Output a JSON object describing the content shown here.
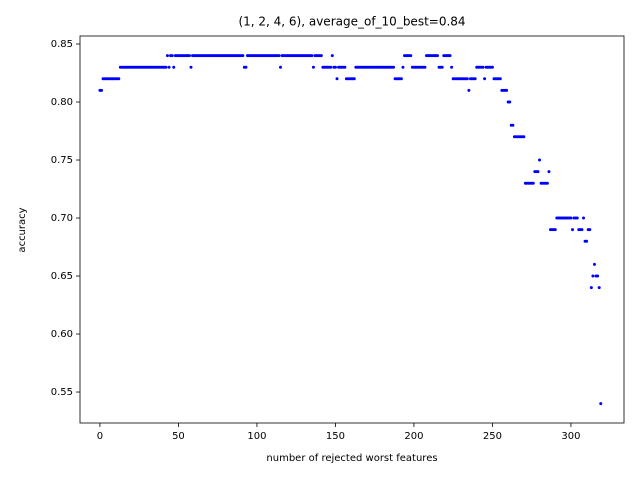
{
  "chart_data": {
    "type": "scatter",
    "title": "(1, 2, 4, 6), average_of_10_best=0.84",
    "xlabel": "number of rejected worst features",
    "ylabel": "accuracy",
    "color": "blue",
    "xlim": [
      -12.7,
      333.8
    ],
    "ylim": [
      0.5233,
      0.8569
    ],
    "xticks": [
      0,
      50,
      100,
      150,
      200,
      250,
      300
    ],
    "yticks": [
      {
        "value": 0.55,
        "label": "0.55"
      },
      {
        "value": 0.6,
        "label": "0.60"
      },
      {
        "value": 0.65,
        "label": "0.65"
      },
      {
        "value": 0.7,
        "label": "0.70"
      },
      {
        "value": 0.75,
        "label": "0.75"
      },
      {
        "value": 0.8,
        "label": "0.80"
      },
      {
        "value": 0.85,
        "label": "0.85"
      }
    ],
    "x": [
      0,
      1,
      2,
      3,
      4,
      5,
      6,
      7,
      8,
      9,
      10,
      11,
      12,
      13,
      14,
      15,
      16,
      17,
      18,
      19,
      20,
      21,
      22,
      23,
      24,
      25,
      26,
      27,
      28,
      29,
      30,
      31,
      32,
      33,
      34,
      35,
      36,
      37,
      38,
      39,
      40,
      41,
      42,
      43,
      44,
      45,
      46,
      47,
      48,
      49,
      50,
      51,
      52,
      53,
      54,
      55,
      56,
      57,
      58,
      59,
      60,
      61,
      62,
      63,
      64,
      65,
      66,
      67,
      68,
      69,
      70,
      71,
      72,
      73,
      74,
      75,
      76,
      77,
      78,
      79,
      80,
      81,
      82,
      83,
      84,
      85,
      86,
      87,
      88,
      89,
      90,
      91,
      92,
      93,
      94,
      95,
      96,
      97,
      98,
      99,
      100,
      101,
      102,
      103,
      104,
      105,
      106,
      107,
      108,
      109,
      110,
      111,
      112,
      113,
      114,
      115,
      116,
      117,
      118,
      119,
      120,
      121,
      122,
      123,
      124,
      125,
      126,
      127,
      128,
      129,
      130,
      131,
      132,
      133,
      134,
      135,
      136,
      137,
      138,
      139,
      140,
      141,
      142,
      143,
      144,
      145,
      146,
      147,
      148,
      149,
      150,
      151,
      152,
      153,
      154,
      155,
      156,
      157,
      158,
      159,
      160,
      161,
      162,
      163,
      164,
      165,
      166,
      167,
      168,
      169,
      170,
      171,
      172,
      173,
      174,
      175,
      176,
      177,
      178,
      179,
      180,
      181,
      182,
      183,
      184,
      185,
      186,
      187,
      188,
      189,
      190,
      191,
      192,
      193,
      194,
      195,
      196,
      197,
      198,
      199,
      200,
      201,
      202,
      203,
      204,
      205,
      206,
      207,
      208,
      209,
      210,
      211,
      212,
      213,
      214,
      215,
      216,
      217,
      218,
      219,
      220,
      221,
      222,
      223,
      224,
      225,
      226,
      227,
      228,
      229,
      230,
      231,
      232,
      233,
      234,
      235,
      236,
      237,
      238,
      239,
      240,
      241,
      242,
      243,
      244,
      245,
      246,
      247,
      248,
      249,
      250,
      251,
      252,
      253,
      254,
      255,
      256,
      257,
      258,
      259,
      260,
      261,
      262,
      263,
      264,
      265,
      266,
      267,
      268,
      269,
      270,
      271,
      272,
      273,
      274,
      275,
      276,
      277,
      278,
      279,
      280,
      281,
      282,
      283,
      284,
      285,
      286,
      287,
      288,
      289,
      290,
      291,
      292,
      293,
      294,
      295,
      296,
      297,
      298,
      299,
      300,
      301,
      302,
      303,
      304,
      305,
      306,
      307,
      308,
      309,
      310,
      311,
      312,
      313,
      314,
      315,
      316,
      317,
      318,
      319
    ],
    "values": [
      0.81,
      0.81,
      0.82,
      0.82,
      0.82,
      0.82,
      0.82,
      0.82,
      0.82,
      0.82,
      0.82,
      0.82,
      0.82,
      0.83,
      0.83,
      0.83,
      0.83,
      0.83,
      0.83,
      0.83,
      0.83,
      0.83,
      0.83,
      0.83,
      0.83,
      0.83,
      0.83,
      0.83,
      0.83,
      0.83,
      0.83,
      0.83,
      0.83,
      0.83,
      0.83,
      0.83,
      0.83,
      0.83,
      0.83,
      0.83,
      0.83,
      0.83,
      0.83,
      0.84,
      0.83,
      0.84,
      0.84,
      0.83,
      0.84,
      0.84,
      0.84,
      0.84,
      0.84,
      0.84,
      0.84,
      0.84,
      0.84,
      0.84,
      0.83,
      0.84,
      0.84,
      0.84,
      0.84,
      0.84,
      0.84,
      0.84,
      0.84,
      0.84,
      0.84,
      0.84,
      0.84,
      0.84,
      0.84,
      0.84,
      0.84,
      0.84,
      0.84,
      0.84,
      0.84,
      0.84,
      0.84,
      0.84,
      0.84,
      0.84,
      0.84,
      0.84,
      0.84,
      0.84,
      0.84,
      0.84,
      0.84,
      0.84,
      0.83,
      0.83,
      0.84,
      0.84,
      0.84,
      0.84,
      0.84,
      0.84,
      0.84,
      0.84,
      0.84,
      0.84,
      0.84,
      0.84,
      0.84,
      0.84,
      0.84,
      0.84,
      0.84,
      0.84,
      0.84,
      0.84,
      0.84,
      0.83,
      0.84,
      0.84,
      0.84,
      0.84,
      0.84,
      0.84,
      0.84,
      0.84,
      0.84,
      0.84,
      0.84,
      0.84,
      0.84,
      0.84,
      0.84,
      0.84,
      0.84,
      0.84,
      0.84,
      0.84,
      0.83,
      0.84,
      0.84,
      0.84,
      0.84,
      0.84,
      0.83,
      0.83,
      0.83,
      0.83,
      0.83,
      0.83,
      0.84,
      0.83,
      0.83,
      0.82,
      0.83,
      0.83,
      0.83,
      0.83,
      0.83,
      0.82,
      0.82,
      0.82,
      0.82,
      0.82,
      0.82,
      0.83,
      0.83,
      0.83,
      0.83,
      0.83,
      0.83,
      0.83,
      0.83,
      0.83,
      0.83,
      0.83,
      0.83,
      0.83,
      0.83,
      0.83,
      0.83,
      0.83,
      0.83,
      0.83,
      0.83,
      0.83,
      0.83,
      0.83,
      0.83,
      0.83,
      0.82,
      0.82,
      0.82,
      0.82,
      0.82,
      0.83,
      0.84,
      0.84,
      0.84,
      0.84,
      0.84,
      0.83,
      0.83,
      0.83,
      0.83,
      0.83,
      0.83,
      0.83,
      0.83,
      0.83,
      0.84,
      0.84,
      0.84,
      0.84,
      0.84,
      0.84,
      0.84,
      0.84,
      0.83,
      0.83,
      0.83,
      0.84,
      0.84,
      0.84,
      0.84,
      0.84,
      0.83,
      0.82,
      0.82,
      0.82,
      0.82,
      0.82,
      0.82,
      0.82,
      0.82,
      0.82,
      0.82,
      0.81,
      0.82,
      0.82,
      0.82,
      0.82,
      0.83,
      0.83,
      0.83,
      0.83,
      0.83,
      0.82,
      0.83,
      0.83,
      0.83,
      0.83,
      0.83,
      0.82,
      0.82,
      0.82,
      0.82,
      0.82,
      0.81,
      0.81,
      0.81,
      0.81,
      0.8,
      0.8,
      0.78,
      0.78,
      0.77,
      0.77,
      0.77,
      0.77,
      0.77,
      0.77,
      0.77,
      0.73,
      0.73,
      0.73,
      0.73,
      0.73,
      0.73,
      0.74,
      0.74,
      0.74,
      0.75,
      0.73,
      0.73,
      0.73,
      0.73,
      0.73,
      0.74,
      0.69,
      0.69,
      0.69,
      0.69,
      0.7,
      0.7,
      0.7,
      0.7,
      0.7,
      0.7,
      0.7,
      0.7,
      0.7,
      0.7,
      0.69,
      0.7,
      0.7,
      0.7,
      0.69,
      0.69,
      0.69,
      0.7,
      0.68,
      0.68,
      0.69,
      0.69,
      0.64,
      0.65,
      0.66,
      0.65,
      0.65,
      0.64,
      0.54
    ]
  }
}
